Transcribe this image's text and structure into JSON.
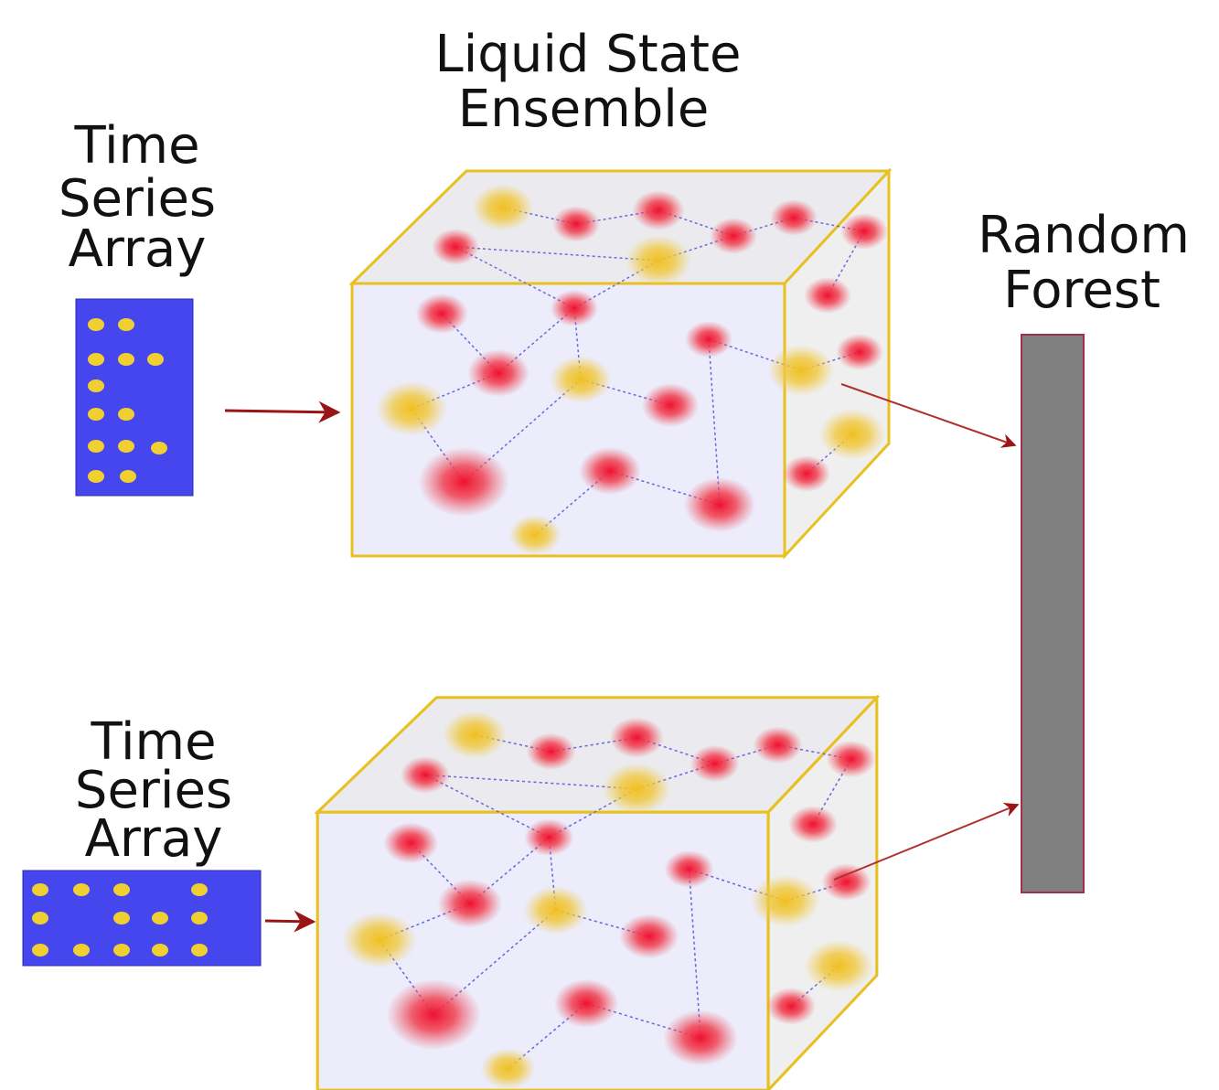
{
  "title": {
    "lines": [
      "Liquid State",
      "Ensemble"
    ]
  },
  "inputs": [
    {
      "label": [
        "Time",
        "Series",
        "Array"
      ]
    },
    {
      "label": [
        "Time",
        "Series",
        "Array"
      ]
    }
  ],
  "output": {
    "label": [
      "Random",
      "Forest"
    ]
  }
}
